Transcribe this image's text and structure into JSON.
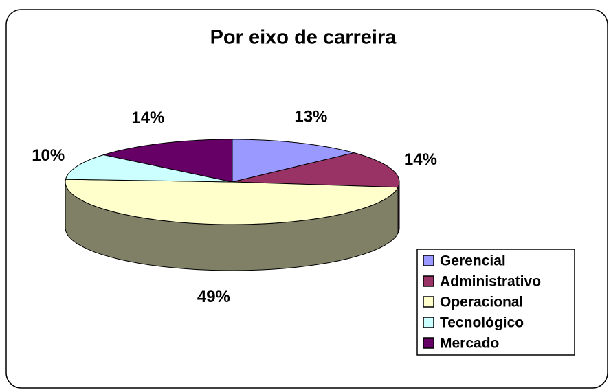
{
  "chart_data": {
    "type": "pie",
    "title": "Por eixo de carreira",
    "categories": [
      "Gerencial",
      "Administrativo",
      "Operacional",
      "Tecnológico",
      "Mercado"
    ],
    "values": [
      13,
      14,
      49,
      10,
      14
    ],
    "value_labels": [
      "13%",
      "14%",
      "49%",
      "10%",
      "14%"
    ],
    "colors": [
      "#9999ff",
      "#993366",
      "#ffffcc",
      "#ccffff",
      "#660066"
    ],
    "legend": "right"
  }
}
